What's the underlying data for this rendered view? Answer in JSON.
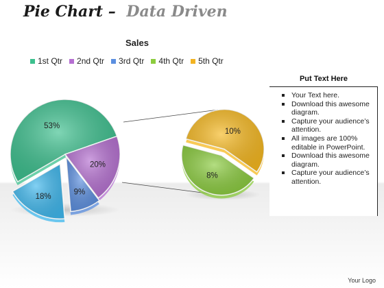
{
  "header": {
    "title": "Pie Chart",
    "dash": "–",
    "subtitle": "Data Driven"
  },
  "chart_data": {
    "type": "pie",
    "title": "Sales",
    "categories": [
      "1st Qtr",
      "2nd Qtr",
      "3rd Qtr",
      "4th Qtr",
      "5th Qtr"
    ],
    "values": [
      53,
      20,
      9,
      18
    ],
    "labels": [
      "53%",
      "20%",
      "9%",
      "18%"
    ],
    "colors": [
      "#3cc08e",
      "#b56fd1",
      "#5b8fe0",
      "#3fb8ee"
    ],
    "legend_colors": [
      "#3cc08e",
      "#b56fd1",
      "#5b8fe0",
      "#8ccc3e",
      "#f2b322"
    ],
    "exploded_detail": {
      "type": "pie",
      "values": [
        10,
        8
      ],
      "labels": [
        "10%",
        "8%"
      ],
      "colors": [
        "#f6b81f",
        "#8bcc3e"
      ]
    },
    "legend_position": "top"
  },
  "panel": {
    "title": "Put Text Here",
    "bullets": [
      "Your Text here.",
      "Download this awesome diagram.",
      "Capture your audience’s attention.",
      "All images are 100% editable in PowerPoint.",
      "Download this awesome diagram.",
      "Capture your audience’s attention."
    ]
  },
  "footer": {
    "logo": "Your Logo"
  }
}
